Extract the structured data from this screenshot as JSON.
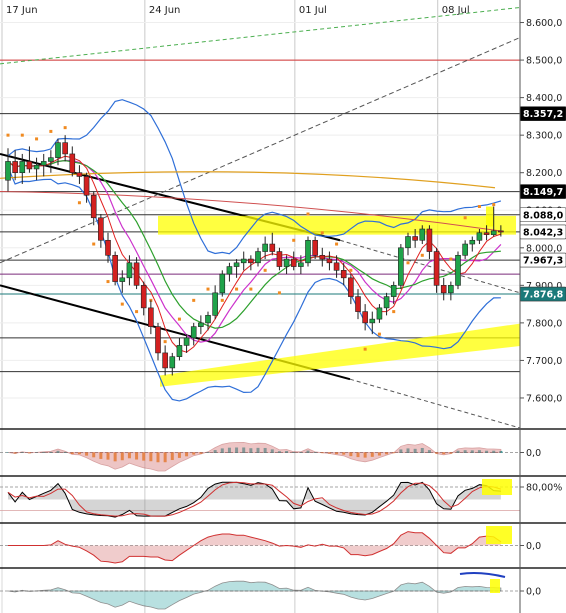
{
  "chart_data": {
    "type": "candlestick",
    "x_ticks": [
      "17 Jun",
      "24 Jun",
      "01 Jul",
      "08 Jul"
    ],
    "y_ticks": [
      "8.600,0",
      "8.500,0",
      "8.400,0",
      "8.300,0",
      "8.200,0",
      "8.100,0",
      "8.000,0",
      "7.900,0",
      "7.800,0",
      "7.700,0",
      "7.600,0"
    ],
    "ylim": [
      7520,
      8660
    ],
    "price_tags": [
      {
        "label": "8.357,2",
        "value": 8357.2,
        "style": "dark"
      },
      {
        "label": "8.149,7",
        "value": 8149.7,
        "style": "dark"
      },
      {
        "label": "8.088,0",
        "value": 8088.0,
        "style": "light"
      },
      {
        "label": "8.042,3",
        "value": 8042.3,
        "style": "light"
      },
      {
        "label": "7.967,3",
        "value": 7967.3,
        "style": "light"
      },
      {
        "label": "7.876,8",
        "value": 7876.8,
        "style": "teal"
      }
    ],
    "horizontal_levels": [
      {
        "value": 8500,
        "color": "#d03030"
      },
      {
        "value": 8357.2,
        "color": "#333333"
      },
      {
        "value": 8149.7,
        "color": "#333333"
      },
      {
        "value": 8088.0,
        "color": "#333333"
      },
      {
        "value": 8042.3,
        "color": "#333333"
      },
      {
        "value": 7967.3,
        "color": "#333333"
      },
      {
        "value": 7930,
        "color": "#7a2a7a"
      },
      {
        "value": 7876.8,
        "color": "#1b7a7a"
      },
      {
        "value": 7760,
        "color": "#333333"
      },
      {
        "value": 7670,
        "color": "#333333"
      }
    ],
    "candles": [
      [
        8180,
        8265,
        8150,
        8230
      ],
      [
        8230,
        8260,
        8180,
        8200
      ],
      [
        8200,
        8250,
        8170,
        8230
      ],
      [
        8230,
        8270,
        8200,
        8210
      ],
      [
        8210,
        8240,
        8180,
        8220
      ],
      [
        8220,
        8250,
        8190,
        8230
      ],
      [
        8230,
        8260,
        8200,
        8240
      ],
      [
        8240,
        8290,
        8220,
        8280
      ],
      [
        8280,
        8300,
        8230,
        8250
      ],
      [
        8250,
        8270,
        8190,
        8200
      ],
      [
        8200,
        8220,
        8170,
        8190
      ],
      [
        8190,
        8200,
        8120,
        8140
      ],
      [
        8140,
        8150,
        8060,
        8080
      ],
      [
        8080,
        8090,
        8000,
        8020
      ],
      [
        8020,
        8040,
        7960,
        7980
      ],
      [
        7980,
        7990,
        7900,
        7910
      ],
      [
        7910,
        7940,
        7880,
        7920
      ],
      [
        7920,
        7980,
        7900,
        7960
      ],
      [
        7960,
        7975,
        7890,
        7900
      ],
      [
        7900,
        7910,
        7820,
        7840
      ],
      [
        7840,
        7860,
        7770,
        7790
      ],
      [
        7790,
        7800,
        7700,
        7720
      ],
      [
        7720,
        7740,
        7660,
        7680
      ],
      [
        7680,
        7720,
        7660,
        7710
      ],
      [
        7710,
        7760,
        7700,
        7740
      ],
      [
        7740,
        7770,
        7720,
        7760
      ],
      [
        7760,
        7800,
        7740,
        7790
      ],
      [
        7790,
        7820,
        7770,
        7800
      ],
      [
        7800,
        7830,
        7780,
        7820
      ],
      [
        7820,
        7900,
        7810,
        7880
      ],
      [
        7880,
        7940,
        7870,
        7930
      ],
      [
        7930,
        7960,
        7910,
        7950
      ],
      [
        7950,
        7970,
        7920,
        7960
      ],
      [
        7960,
        7990,
        7940,
        7970
      ],
      [
        7970,
        7980,
        7940,
        7960
      ],
      [
        7960,
        8000,
        7950,
        7990
      ],
      [
        7990,
        8030,
        7970,
        8010
      ],
      [
        8010,
        8040,
        7980,
        7990
      ],
      [
        7990,
        8000,
        7940,
        7950
      ],
      [
        7950,
        7980,
        7930,
        7970
      ],
      [
        7970,
        7990,
        7940,
        7950
      ],
      [
        7950,
        7980,
        7930,
        7960
      ],
      [
        7960,
        8030,
        7950,
        8020
      ],
      [
        8020,
        8030,
        7970,
        7980
      ],
      [
        7980,
        8000,
        7950,
        7970
      ],
      [
        7970,
        7990,
        7940,
        7960
      ],
      [
        7960,
        7980,
        7920,
        7940
      ],
      [
        7940,
        7960,
        7900,
        7920
      ],
      [
        7920,
        7930,
        7850,
        7870
      ],
      [
        7870,
        7890,
        7810,
        7830
      ],
      [
        7830,
        7850,
        7780,
        7800
      ],
      [
        7800,
        7830,
        7770,
        7810
      ],
      [
        7810,
        7850,
        7800,
        7840
      ],
      [
        7840,
        7880,
        7820,
        7870
      ],
      [
        7870,
        7910,
        7850,
        7900
      ],
      [
        7900,
        8010,
        7890,
        8000
      ],
      [
        8000,
        8040,
        7980,
        8030
      ],
      [
        8030,
        8050,
        8000,
        8020
      ],
      [
        8020,
        8060,
        8010,
        8050
      ],
      [
        8050,
        8060,
        7970,
        7990
      ],
      [
        7990,
        8000,
        7880,
        7900
      ],
      [
        7900,
        7920,
        7860,
        7880
      ],
      [
        7880,
        7910,
        7860,
        7900
      ],
      [
        7900,
        7990,
        7890,
        7980
      ],
      [
        7980,
        8020,
        7970,
        8010
      ],
      [
        8010,
        8030,
        7990,
        8020
      ],
      [
        8020,
        8050,
        8010,
        8040
      ],
      [
        8040,
        8060,
        8020,
        8035
      ],
      [
        8035,
        8110,
        8030,
        8045
      ],
      [
        8045,
        8060,
        8030,
        8042
      ]
    ]
  },
  "indicators": [
    {
      "name": "macd",
      "zero_label": "0,0"
    },
    {
      "name": "stochastic",
      "level_label": "80,00%"
    },
    {
      "name": "momentum",
      "zero_label": "0,0"
    },
    {
      "name": "oscillator",
      "zero_label": "0,0"
    }
  ]
}
